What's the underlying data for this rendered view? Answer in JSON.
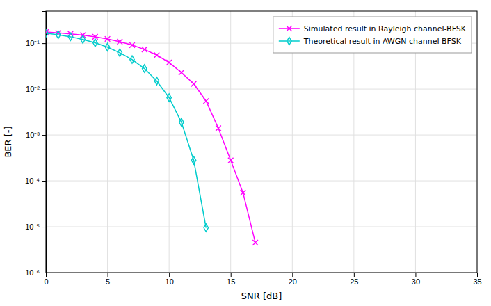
{
  "chart_data": {
    "type": "line",
    "xlabel": "SNR [dB]",
    "ylabel": "BER [-]",
    "log": "y",
    "grid": true,
    "legend": "upper right",
    "xlim": [
      0,
      35
    ],
    "xticks": [
      0,
      5,
      10,
      15,
      20,
      25,
      30,
      35
    ],
    "ylim": [
      1e-06,
      0.5
    ],
    "yticks": [
      {
        "value": 1e-06,
        "label": "10⁻⁶"
      },
      {
        "value": 1e-05,
        "label": "10⁻⁵"
      },
      {
        "value": 0.0001,
        "label": "10⁻⁴"
      },
      {
        "value": 0.001,
        "label": "10⁻³"
      },
      {
        "value": 0.01,
        "label": "10⁻²"
      },
      {
        "value": 0.1,
        "label": "10⁻¹"
      }
    ],
    "series": [
      {
        "name": "Simulated result in Rayleigh channel-BFSK",
        "color": "#FF00FF",
        "marker": "x",
        "x": [
          0,
          1,
          2,
          3,
          4,
          5,
          6,
          7,
          8,
          9,
          10,
          11,
          12,
          13,
          14,
          15,
          16,
          17
        ],
        "values": [
          0.175,
          0.168,
          0.16,
          0.15,
          0.138,
          0.124,
          0.108,
          0.091,
          0.073,
          0.055,
          0.038,
          0.023,
          0.013,
          0.0055,
          0.0014,
          0.00028,
          5.5e-05,
          4.5e-06
        ]
      },
      {
        "name": "Theoretical result in AWGN channel-BFSK",
        "color": "#00CCCC",
        "marker": "diamond",
        "x": [
          0,
          1,
          2,
          3,
          4,
          5,
          6,
          7,
          8,
          9,
          10,
          11,
          12,
          13
        ],
        "values": [
          0.165,
          0.153,
          0.138,
          0.121,
          0.102,
          0.082,
          0.062,
          0.044,
          0.028,
          0.015,
          0.0065,
          0.0019,
          0.00028,
          9.5e-06
        ]
      }
    ]
  }
}
